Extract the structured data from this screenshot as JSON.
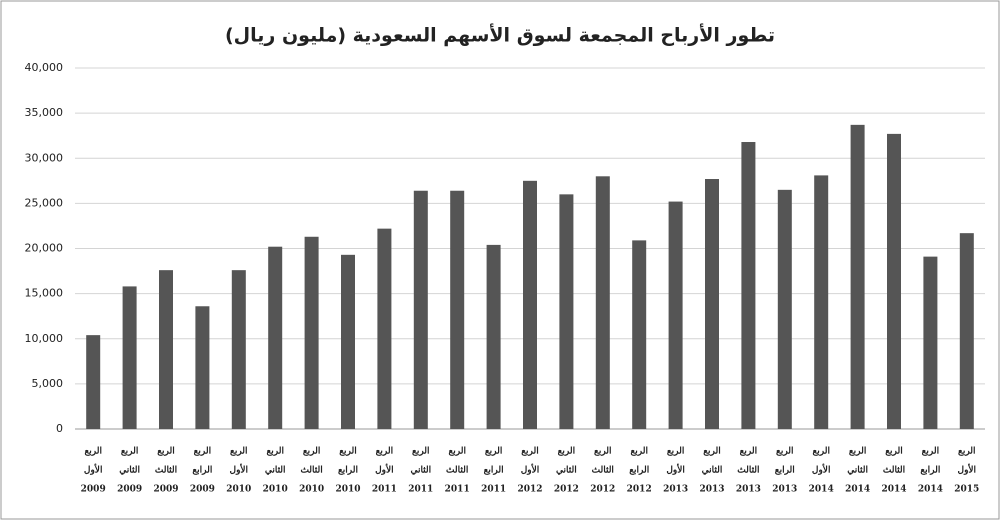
{
  "chart_data": {
    "type": "bar",
    "title": "تطور الأرباح المجمعة لسوق الأسهم السعودية (مليون ريال)",
    "categories": [
      [
        "الربع",
        "الأول",
        "2009"
      ],
      [
        "الربع",
        "الثاني",
        "2009"
      ],
      [
        "الربع",
        "الثالث",
        "2009"
      ],
      [
        "الربع",
        "الرابع",
        "2009"
      ],
      [
        "الربع",
        "الأول",
        "2010"
      ],
      [
        "الربع",
        "الثاني",
        "2010"
      ],
      [
        "الربع",
        "الثالث",
        "2010"
      ],
      [
        "الربع",
        "الرابع",
        "2010"
      ],
      [
        "الربع",
        "الأول",
        "2011"
      ],
      [
        "الربع",
        "الثاني",
        "2011"
      ],
      [
        "الربع",
        "الثالث",
        "2011"
      ],
      [
        "الربع",
        "الرابع",
        "2011"
      ],
      [
        "الربع",
        "الأول",
        "2012"
      ],
      [
        "الربع",
        "الثاني",
        "2012"
      ],
      [
        "الربع",
        "الثالث",
        "2012"
      ],
      [
        "الربع",
        "الرابع",
        "2012"
      ],
      [
        "الربع",
        "الأول",
        "2013"
      ],
      [
        "الربع",
        "الثاني",
        "2013"
      ],
      [
        "الربع",
        "الثالث",
        "2013"
      ],
      [
        "الربع",
        "الرابع",
        "2013"
      ],
      [
        "الربع",
        "الأول",
        "2014"
      ],
      [
        "الربع",
        "الثاني",
        "2014"
      ],
      [
        "الربع",
        "الثالث",
        "2014"
      ],
      [
        "الربع",
        "الرابع",
        "2014"
      ],
      [
        "الربع",
        "الأول",
        "2015"
      ]
    ],
    "values": [
      10400,
      15800,
      17600,
      13600,
      17600,
      20200,
      21300,
      19300,
      22200,
      26400,
      26400,
      20400,
      27500,
      26000,
      28000,
      20900,
      25200,
      27700,
      31800,
      26500,
      28100,
      33700,
      32700,
      19100,
      21700
    ],
    "color": "#555555",
    "ylim": [
      0,
      40000
    ],
    "yticks": [
      0,
      {
        "value": 5000,
        "label": "5,000"
      },
      {
        "value": 10000,
        "label": "10,000"
      },
      {
        "value": 15000,
        "label": "15,000"
      },
      {
        "value": 20000,
        "label": "20,000"
      },
      {
        "value": 25000,
        "label": "25,000"
      },
      {
        "value": 30000,
        "label": "30,000"
      },
      {
        "value": 35000,
        "label": "35,000"
      },
      {
        "value": 40000,
        "label": "40,000"
      }
    ],
    "grid": true
  }
}
